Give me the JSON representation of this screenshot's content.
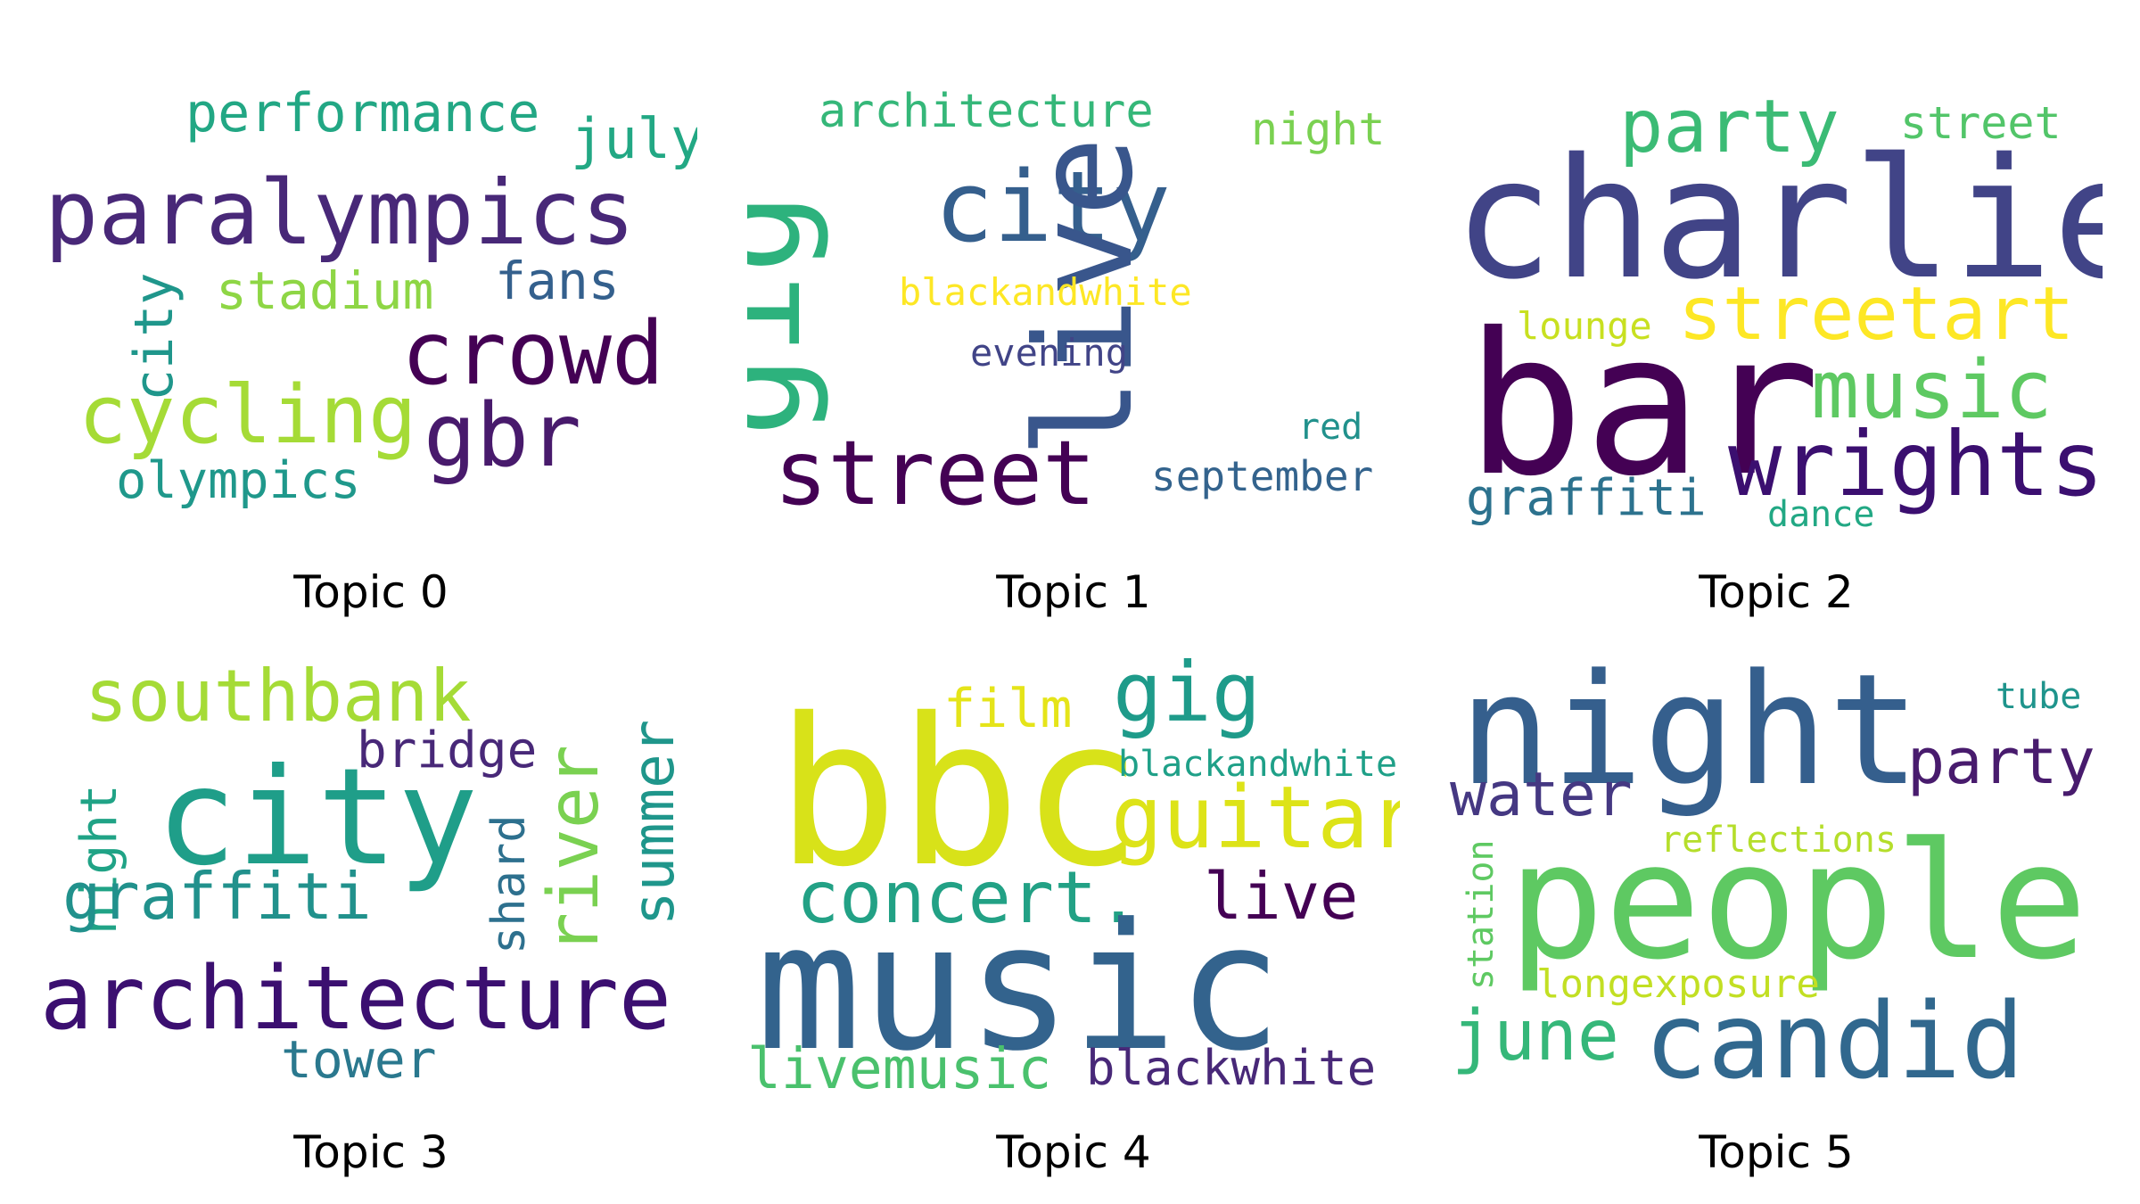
{
  "panels": [
    {
      "caption": "Topic 0",
      "words": [
        {
          "text": "performance",
          "color": "#22a784"
        },
        {
          "text": "july",
          "color": "#22a884"
        },
        {
          "text": "paralympics",
          "color": "#482878"
        },
        {
          "text": "stadium",
          "color": "#8ed645"
        },
        {
          "text": "fans",
          "color": "#34608d"
        },
        {
          "text": "city",
          "color": "#1f968b"
        },
        {
          "text": "crowd",
          "color": "#440154"
        },
        {
          "text": "cycling",
          "color": "#a5db36"
        },
        {
          "text": "gbr",
          "color": "#481a6c"
        },
        {
          "text": "olympics",
          "color": "#1f988b"
        }
      ]
    },
    {
      "caption": "Topic 1",
      "words": [
        {
          "text": "architecture",
          "color": "#35b779"
        },
        {
          "text": "night",
          "color": "#7ad151"
        },
        {
          "text": "gig",
          "color": "#2db27d"
        },
        {
          "text": "city",
          "color": "#355f8d"
        },
        {
          "text": "live",
          "color": "#39568c"
        },
        {
          "text": "blackandwhite",
          "color": "#fde725"
        },
        {
          "text": "evening",
          "color": "#414487"
        },
        {
          "text": "red",
          "color": "#21918c"
        },
        {
          "text": "street",
          "color": "#440154"
        },
        {
          "text": "september",
          "color": "#33638d"
        }
      ]
    },
    {
      "caption": "Topic 2",
      "words": [
        {
          "text": "party",
          "color": "#3bbb75"
        },
        {
          "text": "street",
          "color": "#52c569"
        },
        {
          "text": "charlie",
          "color": "#414487"
        },
        {
          "text": "lounge",
          "color": "#c8e020"
        },
        {
          "text": "streetart",
          "color": "#fde725"
        },
        {
          "text": "bar",
          "color": "#440154"
        },
        {
          "text": "music",
          "color": "#5ec962"
        },
        {
          "text": "wrights",
          "color": "#3b0f70"
        },
        {
          "text": "graffiti",
          "color": "#2c728e"
        },
        {
          "text": "dance",
          "color": "#22a884"
        }
      ]
    },
    {
      "caption": "Topic 3",
      "words": [
        {
          "text": "southbank",
          "color": "#a5db36"
        },
        {
          "text": "summer",
          "color": "#1f968b"
        },
        {
          "text": "night",
          "color": "#20a386"
        },
        {
          "text": "bridge",
          "color": "#482878"
        },
        {
          "text": "city",
          "color": "#1f9e89"
        },
        {
          "text": "river",
          "color": "#7ad151"
        },
        {
          "text": "shard",
          "color": "#2d708e"
        },
        {
          "text": "graffiti",
          "color": "#21918c"
        },
        {
          "text": "architecture",
          "color": "#3b0f70"
        },
        {
          "text": "tower",
          "color": "#2a788e"
        }
      ]
    },
    {
      "caption": "Topic 4",
      "words": [
        {
          "text": "film",
          "color": "#e5e419"
        },
        {
          "text": "gig",
          "color": "#1e9b8a"
        },
        {
          "text": "bbc",
          "color": "#d8e219"
        },
        {
          "text": "blackandwhite",
          "color": "#1fa088"
        },
        {
          "text": "guitar",
          "color": "#dde318"
        },
        {
          "text": "concert.",
          "color": "#22a185"
        },
        {
          "text": "live",
          "color": "#440154"
        },
        {
          "text": "music",
          "color": "#33638d"
        },
        {
          "text": "livemusic",
          "color": "#4ac16d"
        },
        {
          "text": "blackwhite",
          "color": "#482878"
        }
      ]
    },
    {
      "caption": "Topic 5",
      "words": [
        {
          "text": "night",
          "color": "#355f8d"
        },
        {
          "text": "tube",
          "color": "#1f948c"
        },
        {
          "text": "party",
          "color": "#481b6d"
        },
        {
          "text": "water",
          "color": "#453882"
        },
        {
          "text": "reflections",
          "color": "#b5de2b"
        },
        {
          "text": "station",
          "color": "#5ec962"
        },
        {
          "text": "people",
          "color": "#5ec962"
        },
        {
          "text": "longexposure",
          "color": "#c2df23"
        },
        {
          "text": "june",
          "color": "#35b779"
        },
        {
          "text": "candid",
          "color": "#31688e"
        }
      ]
    }
  ]
}
